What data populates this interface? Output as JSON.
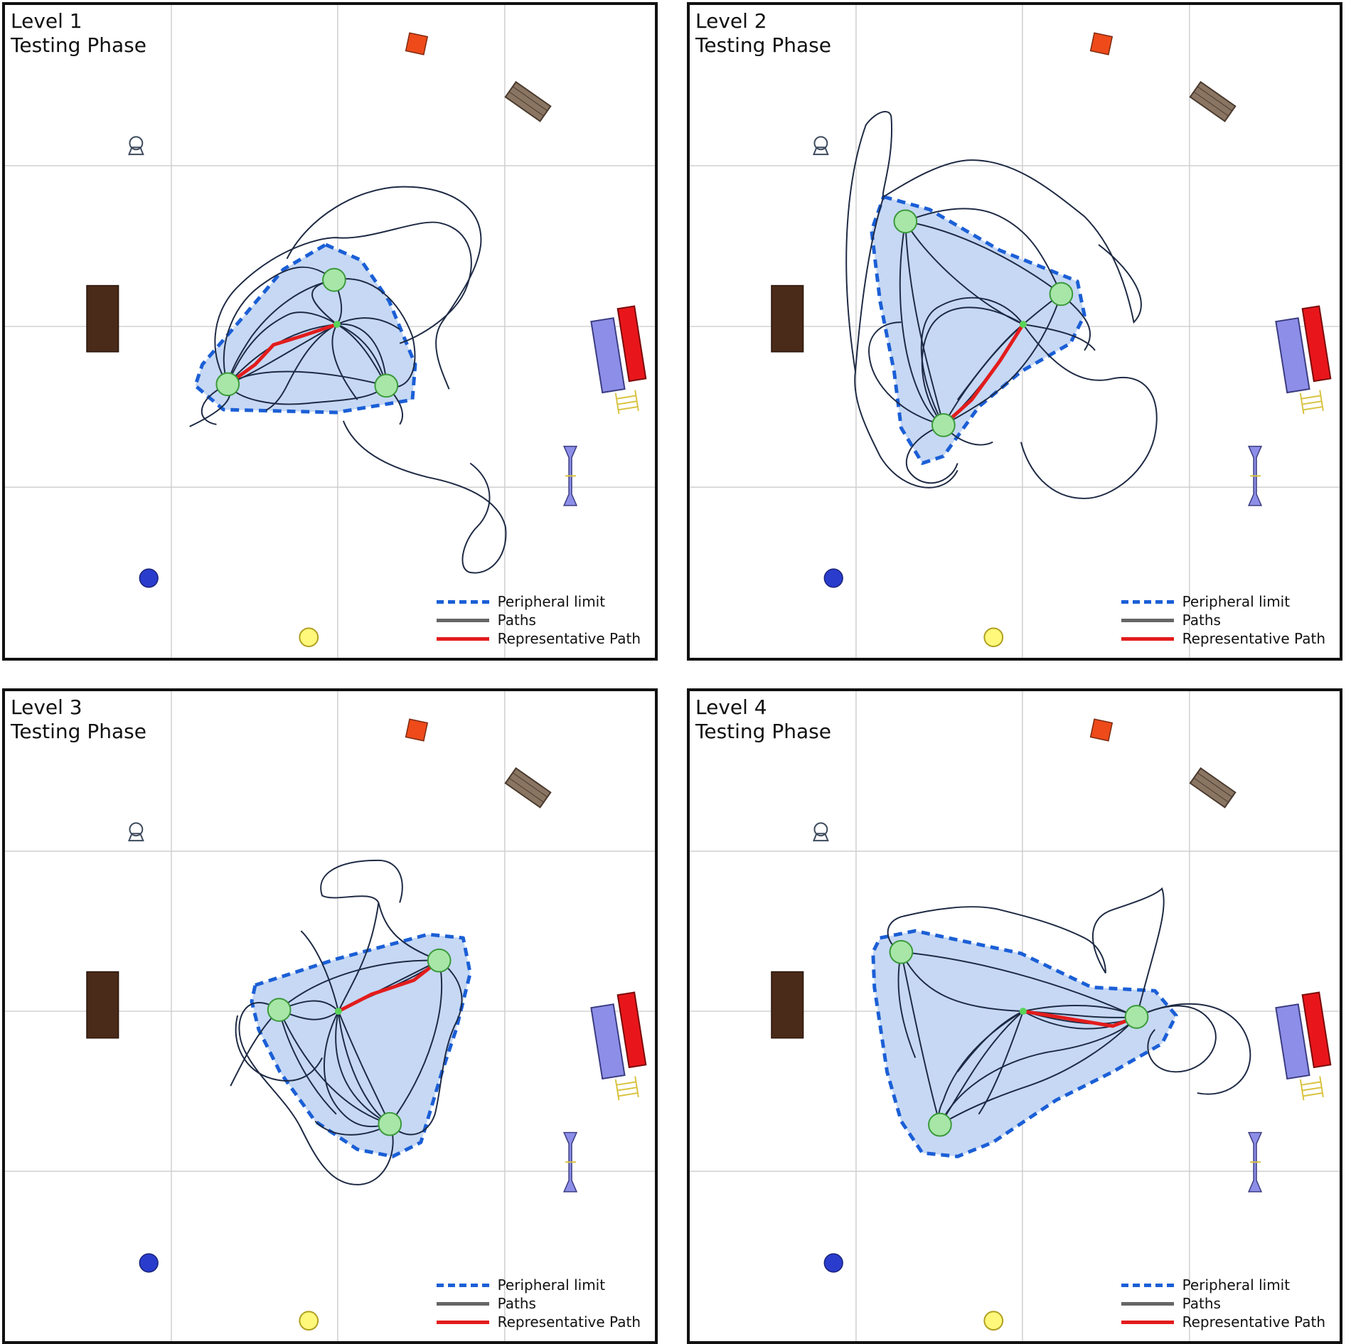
{
  "panels": [
    {
      "level": "Level  1",
      "phase": "Testing Phase"
    },
    {
      "level": "Level  2",
      "phase": "Testing Phase"
    },
    {
      "level": "Level  3",
      "phase": "Testing Phase"
    },
    {
      "level": "Level  4",
      "phase": "Testing Phase"
    }
  ],
  "legend": {
    "peripheral_limit": "Peripheral limit",
    "paths": "Paths",
    "representative_path": "Representative Path"
  },
  "colors": {
    "peripheral_limit": "#1b5fd6",
    "peripheral_fill": "#c6d8f4",
    "paths": "#1e2a44",
    "representative_path": "#e31c1c",
    "target": "#a8e6a8",
    "grid": "#cfcfcf"
  },
  "icons": [
    "chair-icon",
    "table-icon",
    "red-box-icon",
    "bench-icon",
    "bed-icon",
    "ladder-icon",
    "spool-icon",
    "blue-disc-icon",
    "yellow-disc-icon"
  ]
}
